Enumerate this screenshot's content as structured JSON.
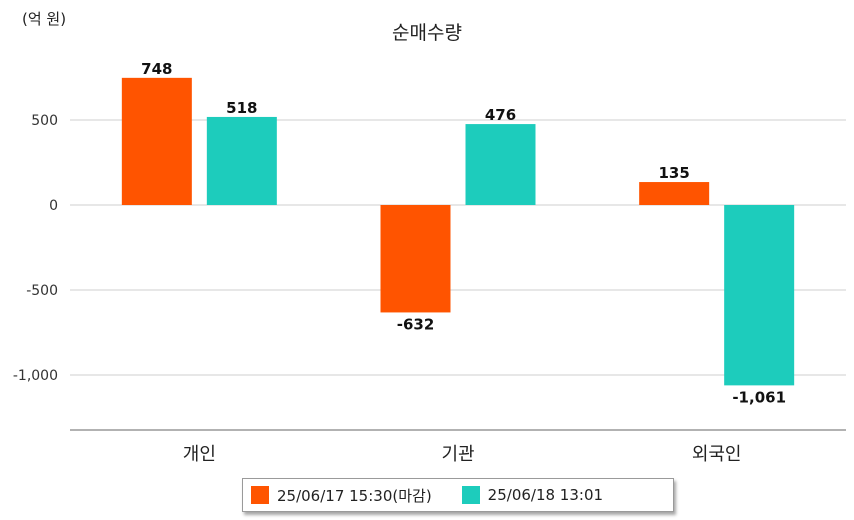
{
  "chart_data": {
    "type": "bar",
    "title": "순매수량",
    "unit_label": "(억 원)",
    "categories": [
      "개인",
      "기관",
      "외국인"
    ],
    "series": [
      {
        "name": "25/06/17 15:30(마감)",
        "color": "#ff5400",
        "values": [
          748,
          -632,
          135
        ],
        "labels": [
          "748",
          "-632",
          "135"
        ]
      },
      {
        "name": "25/06/18 13:01",
        "color": "#1dccbc",
        "values": [
          518,
          476,
          -1061
        ],
        "labels": [
          "518",
          "476",
          "-1,061"
        ]
      }
    ],
    "yticks": [
      500,
      0,
      -500,
      -1000
    ],
    "ytick_labels": [
      "500",
      "0",
      "-500",
      "-1,000"
    ],
    "ylim": [
      -1320,
      830
    ],
    "grid": true,
    "legend_position": "bottom"
  }
}
